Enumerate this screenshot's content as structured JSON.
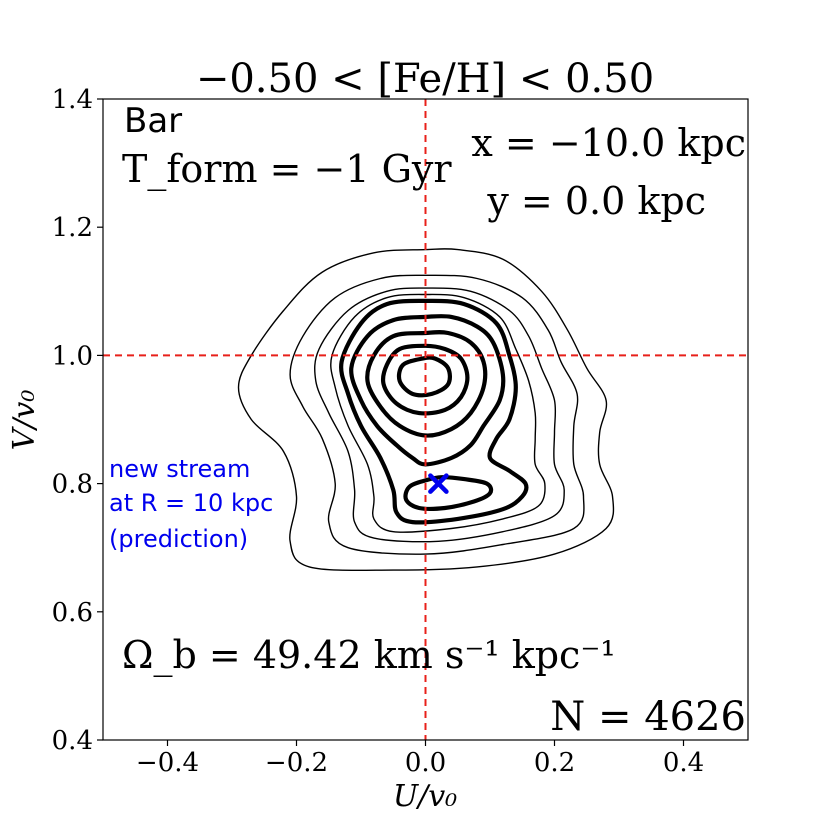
{
  "chart_data": {
    "type": "contour",
    "title": "−0.50 < [Fe/H] < 0.50",
    "xlabel": "U/v₀",
    "ylabel": "V/v₀",
    "xlim": [
      -0.5,
      0.5
    ],
    "ylim": [
      0.4,
      1.4
    ],
    "xticks": [
      -0.4,
      -0.2,
      0.0,
      0.2,
      0.4
    ],
    "xtick_labels": [
      "−0.4",
      "−0.2",
      "0.0",
      "0.2",
      "0.4"
    ],
    "yticks": [
      0.4,
      0.6,
      0.8,
      1.0,
      1.2,
      1.4
    ],
    "ytick_labels": [
      "0.4",
      "0.6",
      "0.8",
      "1.0",
      "1.2",
      "1.4"
    ],
    "grid": false,
    "reference_lines": {
      "x": 0.0,
      "y": 1.0,
      "color": "#e8201a"
    },
    "annotations": {
      "model": "Bar",
      "tform": "T_form = −1 Gyr",
      "x_pos": "x = −10.0 kpc",
      "y_pos": "y = 0.0 kpc",
      "omega": "Ω_b = 49.42 km s⁻¹ kpc⁻¹",
      "count": "N = 4626"
    },
    "prediction": {
      "u": 0.02,
      "v": 0.8,
      "label_lines": [
        "new stream",
        "at R = 10 kpc",
        "(prediction)"
      ],
      "color": "#0000ee"
    },
    "contours": [
      {
        "level": 1,
        "weight": "thin",
        "points": [
          [
            0.0,
            1.165
          ],
          [
            -0.08,
            1.16
          ],
          [
            -0.16,
            1.13
          ],
          [
            -0.22,
            1.07
          ],
          [
            -0.27,
            1.0
          ],
          [
            -0.29,
            0.95
          ],
          [
            -0.27,
            0.9
          ],
          [
            -0.22,
            0.85
          ],
          [
            -0.2,
            0.78
          ],
          [
            -0.21,
            0.71
          ],
          [
            -0.18,
            0.67
          ],
          [
            -0.05,
            0.665
          ],
          [
            0.08,
            0.67
          ],
          [
            0.2,
            0.69
          ],
          [
            0.28,
            0.73
          ],
          [
            0.29,
            0.78
          ],
          [
            0.27,
            0.83
          ],
          [
            0.27,
            0.88
          ],
          [
            0.28,
            0.93
          ],
          [
            0.25,
            0.98
          ],
          [
            0.22,
            1.04
          ],
          [
            0.18,
            1.1
          ],
          [
            0.12,
            1.15
          ],
          [
            0.05,
            1.165
          ]
        ]
      },
      {
        "level": 2,
        "weight": "thin",
        "points": [
          [
            0.0,
            1.125
          ],
          [
            -0.07,
            1.12
          ],
          [
            -0.14,
            1.09
          ],
          [
            -0.19,
            1.03
          ],
          [
            -0.21,
            0.97
          ],
          [
            -0.19,
            0.92
          ],
          [
            -0.16,
            0.87
          ],
          [
            -0.14,
            0.8
          ],
          [
            -0.15,
            0.74
          ],
          [
            -0.12,
            0.7
          ],
          [
            0.0,
            0.69
          ],
          [
            0.12,
            0.705
          ],
          [
            0.23,
            0.73
          ],
          [
            0.245,
            0.78
          ],
          [
            0.23,
            0.83
          ],
          [
            0.23,
            0.89
          ],
          [
            0.235,
            0.94
          ],
          [
            0.21,
            0.99
          ],
          [
            0.19,
            1.04
          ],
          [
            0.15,
            1.09
          ],
          [
            0.08,
            1.12
          ]
        ]
      },
      {
        "level": 3,
        "weight": "thin",
        "points": [
          [
            0.0,
            1.105
          ],
          [
            -0.06,
            1.1
          ],
          [
            -0.12,
            1.07
          ],
          [
            -0.165,
            1.01
          ],
          [
            -0.17,
            0.96
          ],
          [
            -0.15,
            0.91
          ],
          [
            -0.12,
            0.85
          ],
          [
            -0.11,
            0.79
          ],
          [
            -0.11,
            0.74
          ],
          [
            -0.08,
            0.715
          ],
          [
            0.02,
            0.71
          ],
          [
            0.12,
            0.725
          ],
          [
            0.2,
            0.75
          ],
          [
            0.215,
            0.79
          ],
          [
            0.2,
            0.83
          ],
          [
            0.2,
            0.88
          ],
          [
            0.2,
            0.93
          ],
          [
            0.18,
            0.98
          ],
          [
            0.16,
            1.03
          ],
          [
            0.13,
            1.07
          ],
          [
            0.07,
            1.1
          ]
        ]
      },
      {
        "level": 4,
        "weight": "thin",
        "points": [
          [
            0.0,
            1.095
          ],
          [
            -0.06,
            1.09
          ],
          [
            -0.11,
            1.06
          ],
          [
            -0.145,
            1.0
          ],
          [
            -0.14,
            0.95
          ],
          [
            -0.12,
            0.89
          ],
          [
            -0.09,
            0.83
          ],
          [
            -0.08,
            0.78
          ],
          [
            -0.08,
            0.745
          ],
          [
            -0.05,
            0.725
          ],
          [
            0.04,
            0.73
          ],
          [
            0.12,
            0.745
          ],
          [
            0.175,
            0.765
          ],
          [
            0.185,
            0.8
          ],
          [
            0.17,
            0.83
          ],
          [
            0.17,
            0.87
          ],
          [
            0.17,
            0.91
          ],
          [
            0.16,
            0.96
          ],
          [
            0.14,
            1.01
          ],
          [
            0.115,
            1.06
          ],
          [
            0.06,
            1.09
          ]
        ]
      },
      {
        "level": 5,
        "weight": "thick",
        "points": [
          [
            0.0,
            1.085
          ],
          [
            -0.06,
            1.08
          ],
          [
            -0.1,
            1.05
          ],
          [
            -0.13,
            0.99
          ],
          [
            -0.12,
            0.94
          ],
          [
            -0.1,
            0.89
          ],
          [
            -0.07,
            0.84
          ],
          [
            -0.05,
            0.79
          ],
          [
            -0.045,
            0.755
          ],
          [
            -0.02,
            0.74
          ],
          [
            0.05,
            0.745
          ],
          [
            0.12,
            0.76
          ],
          [
            0.15,
            0.78
          ],
          [
            0.155,
            0.8
          ],
          [
            0.13,
            0.82
          ],
          [
            0.1,
            0.84
          ],
          [
            0.11,
            0.87
          ],
          [
            0.13,
            0.9
          ],
          [
            0.14,
            0.95
          ],
          [
            0.13,
            1.0
          ],
          [
            0.11,
            1.05
          ],
          [
            0.06,
            1.08
          ]
        ]
      },
      {
        "level": 6,
        "weight": "thick",
        "points": [
          [
            0.0,
            1.06
          ],
          [
            -0.05,
            1.055
          ],
          [
            -0.09,
            1.03
          ],
          [
            -0.115,
            0.98
          ],
          [
            -0.1,
            0.93
          ],
          [
            -0.075,
            0.89
          ],
          [
            -0.045,
            0.86
          ],
          [
            -0.02,
            0.84
          ],
          [
            0.0,
            0.83
          ],
          [
            0.04,
            0.84
          ],
          [
            0.07,
            0.86
          ],
          [
            0.09,
            0.89
          ],
          [
            0.115,
            0.93
          ],
          [
            0.12,
            0.97
          ],
          [
            0.105,
            1.02
          ],
          [
            0.08,
            1.045
          ],
          [
            0.04,
            1.06
          ]
        ]
      },
      {
        "level": 7,
        "weight": "thick",
        "points": [
          [
            0.0,
            1.035
          ],
          [
            -0.05,
            1.03
          ],
          [
            -0.08,
            1.0
          ],
          [
            -0.09,
            0.96
          ],
          [
            -0.07,
            0.92
          ],
          [
            -0.04,
            0.89
          ],
          [
            0.0,
            0.875
          ],
          [
            0.04,
            0.885
          ],
          [
            0.07,
            0.91
          ],
          [
            0.09,
            0.95
          ],
          [
            0.09,
            0.99
          ],
          [
            0.07,
            1.02
          ],
          [
            0.035,
            1.035
          ]
        ]
      },
      {
        "level": 8,
        "weight": "thick",
        "points": [
          [
            0.0,
            1.015
          ],
          [
            -0.04,
            1.01
          ],
          [
            -0.06,
            0.985
          ],
          [
            -0.065,
            0.955
          ],
          [
            -0.045,
            0.925
          ],
          [
            -0.01,
            0.91
          ],
          [
            0.03,
            0.915
          ],
          [
            0.055,
            0.935
          ],
          [
            0.065,
            0.965
          ],
          [
            0.055,
            0.995
          ],
          [
            0.03,
            1.01
          ]
        ]
      },
      {
        "level": 9,
        "weight": "thick",
        "points": [
          [
            -0.005,
            0.995
          ],
          [
            -0.035,
            0.985
          ],
          [
            -0.04,
            0.96
          ],
          [
            -0.02,
            0.94
          ],
          [
            0.01,
            0.94
          ],
          [
            0.035,
            0.955
          ],
          [
            0.035,
            0.98
          ],
          [
            0.015,
            0.995
          ]
        ]
      },
      {
        "level": 10,
        "weight": "thick",
        "points": [
          [
            0.0,
            0.805
          ],
          [
            -0.025,
            0.795
          ],
          [
            -0.03,
            0.775
          ],
          [
            -0.01,
            0.762
          ],
          [
            0.03,
            0.762
          ],
          [
            0.075,
            0.772
          ],
          [
            0.1,
            0.785
          ],
          [
            0.095,
            0.8
          ],
          [
            0.06,
            0.807
          ],
          [
            0.025,
            0.81
          ]
        ]
      }
    ]
  }
}
